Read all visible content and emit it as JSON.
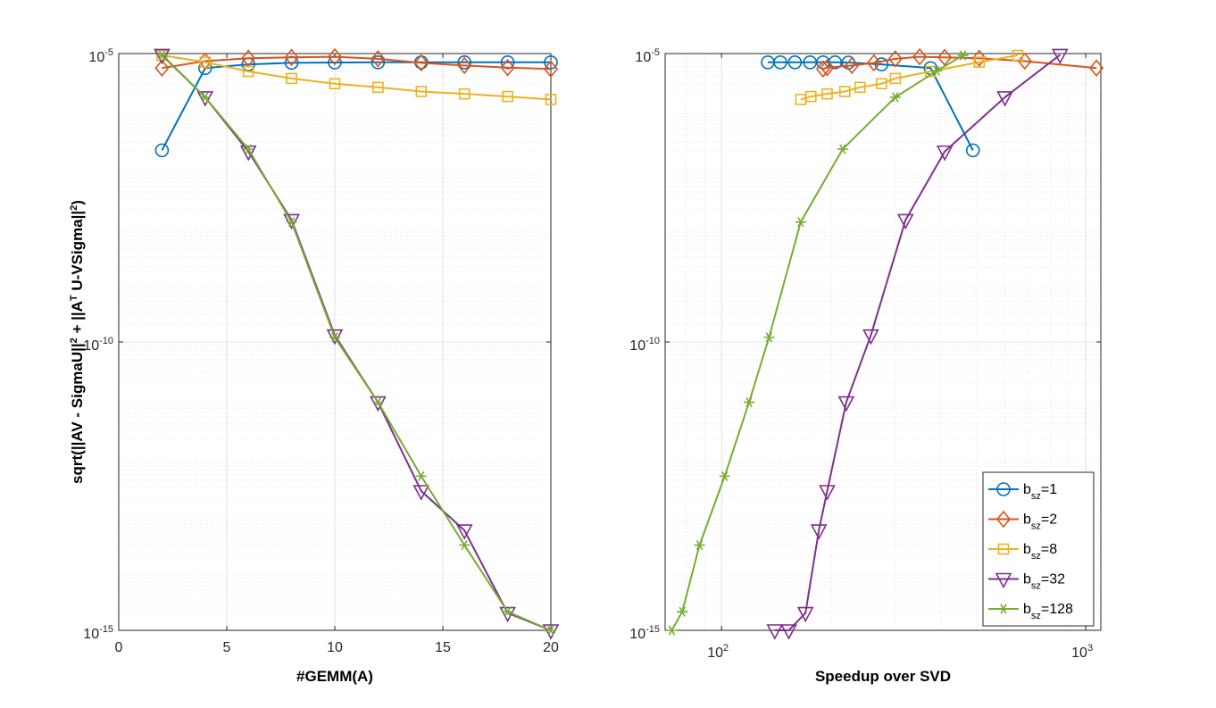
{
  "chart_data": [
    {
      "type": "line",
      "xlabel": "#GEMM(A)",
      "ylabel": "sqrt(||AV - SigmaU||^2 + ||A^T U-VSigma||^2)",
      "xscale": "linear",
      "yscale": "log",
      "xlim": [
        0,
        20
      ],
      "ylim": [
        1e-15,
        1e-05
      ],
      "xticks": [
        0,
        5,
        10,
        15,
        20
      ],
      "xtick_labels": [
        "0",
        "5",
        "10",
        "15",
        "20"
      ],
      "yticks": [
        1e-15,
        1e-10,
        1e-05
      ],
      "ytick_labels": [
        {
          "base": "10",
          "exp": "-15"
        },
        {
          "base": "10",
          "exp": "-10"
        },
        {
          "base": "10",
          "exp": "-5"
        }
      ],
      "grid": true,
      "series": [
        {
          "name": "b_sz=1",
          "color": "#0072BD",
          "marker": "circle",
          "x": [
            2,
            4,
            6,
            8,
            10,
            12,
            14,
            16,
            18,
            20
          ],
          "y": [
            2.1e-07,
            5.6e-06,
            6.5e-06,
            6.9e-06,
            7e-06,
            7.05e-06,
            7.05e-06,
            7.05e-06,
            7.05e-06,
            7.05e-06
          ]
        },
        {
          "name": "b_sz=2",
          "color": "#D95319",
          "marker": "diamond",
          "x": [
            2,
            4,
            6,
            8,
            10,
            12,
            14,
            16,
            18,
            20
          ],
          "y": [
            5.6e-06,
            7.4e-06,
            8.3e-06,
            8.6e-06,
            8.8e-06,
            8.1e-06,
            6.9e-06,
            6.2e-06,
            5.7e-06,
            5.4e-06
          ]
        },
        {
          "name": "b_sz=8",
          "color": "#EDB120",
          "marker": "square",
          "x": [
            2,
            4,
            6,
            8,
            10,
            12,
            14,
            16,
            18,
            20
          ],
          "y": [
            9.3e-06,
            7.1e-06,
            4.9e-06,
            3.7e-06,
            3e-06,
            2.6e-06,
            2.2e-06,
            2e-06,
            1.8e-06,
            1.6e-06
          ]
        },
        {
          "name": "b_sz=32",
          "color": "#7E2F8E",
          "marker": "triangle-down",
          "x": [
            2,
            4,
            6,
            8,
            10,
            12,
            14,
            16,
            18,
            20
          ],
          "y": [
            9.5e-06,
            1.75e-06,
            2e-07,
            1.3e-08,
            1.3e-10,
            9e-12,
            2.6e-13,
            5.4e-14,
            2e-15,
            1e-15
          ]
        },
        {
          "name": "b_sz=128",
          "color": "#77AC30",
          "marker": "asterisk",
          "x": [
            2,
            4,
            6,
            8,
            10,
            12,
            14,
            16,
            18,
            20
          ],
          "y": [
            9.3e-06,
            1.75e-06,
            2.2e-07,
            1.2e-08,
            1.2e-10,
            9e-12,
            4.7e-13,
            3e-14,
            2.1e-15,
            1e-15
          ]
        }
      ]
    },
    {
      "type": "line",
      "xlabel": "Speedup over SVD",
      "xscale": "log",
      "yscale": "log",
      "xlim": [
        70,
        1100
      ],
      "ylim": [
        1e-15,
        1e-05
      ],
      "xticks": [
        100,
        1000
      ],
      "xtick_labels": [
        {
          "base": "10",
          "exp": "2"
        },
        {
          "base": "10",
          "exp": "3"
        }
      ],
      "yticks": [
        1e-15,
        1e-10,
        1e-05
      ],
      "ytick_labels": [
        {
          "base": "10",
          "exp": "-15"
        },
        {
          "base": "10",
          "exp": "-10"
        },
        {
          "base": "10",
          "exp": "-5"
        }
      ],
      "grid": true,
      "legend_position": "bottom-right",
      "series": [
        {
          "name": "b_sz=1",
          "color": "#0072BD",
          "marker": "circle",
          "x": [
            134,
            145,
            159,
            175,
            190,
            205,
            223,
            275,
            375,
            490
          ],
          "y": [
            7.05e-06,
            7.05e-06,
            7.05e-06,
            7.05e-06,
            7.05e-06,
            7.05e-06,
            7e-06,
            6.5e-06,
            5.6e-06,
            2.1e-07
          ]
        },
        {
          "name": "b_sz=2",
          "color": "#D95319",
          "marker": "diamond",
          "x": [
            190,
            195,
            228,
            262,
            300,
            350,
            410,
            510,
            680,
            1070
          ],
          "y": [
            5.4e-06,
            5.7e-06,
            6.2e-06,
            6.9e-06,
            8.1e-06,
            8.8e-06,
            8.6e-06,
            8.3e-06,
            7.4e-06,
            5.6e-06
          ]
        },
        {
          "name": "b_sz=8",
          "color": "#EDB120",
          "marker": "square",
          "x": [
            165,
            176,
            195,
            218,
            240,
            275,
            300,
            375,
            510,
            650
          ],
          "y": [
            1.6e-06,
            1.8e-06,
            2e-06,
            2.2e-06,
            2.6e-06,
            3e-06,
            3.7e-06,
            4.9e-06,
            7.1e-06,
            9.3e-06
          ]
        },
        {
          "name": "b_sz=32",
          "color": "#7E2F8E",
          "marker": "triangle-down",
          "x": [
            140,
            153,
            170,
            185,
            195,
            220,
            257,
            320,
            410,
            600,
            850
          ],
          "y": [
            1e-15,
            1e-15,
            2e-15,
            5.4e-14,
            2.6e-13,
            9e-12,
            1.3e-10,
            1.3e-08,
            2e-07,
            1.75e-06,
            9.5e-06
          ]
        },
        {
          "name": "b_sz=128",
          "color": "#77AC30",
          "marker": "asterisk",
          "x": [
            73,
            78,
            87,
            102,
            119,
            135,
            165,
            215,
            300,
            390,
            460
          ],
          "y": [
            1e-15,
            2.1e-15,
            3e-14,
            4.7e-13,
            9e-12,
            1.2e-10,
            1.2e-08,
            2.2e-07,
            1.75e-06,
            5e-06,
            9.3e-06
          ]
        }
      ]
    }
  ]
}
